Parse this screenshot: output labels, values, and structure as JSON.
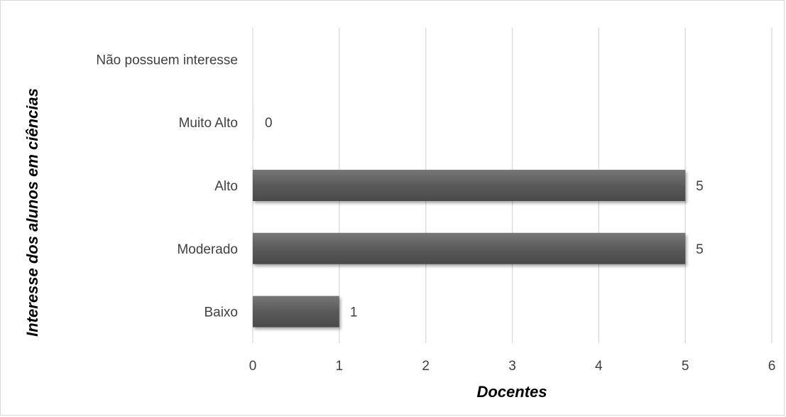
{
  "chart_data": {
    "type": "bar",
    "orientation": "horizontal",
    "categories": [
      "Baixo",
      "Moderado",
      "Alto",
      "Muito Alto",
      "Não possuem interesse"
    ],
    "values": [
      1,
      5,
      5,
      0,
      null
    ],
    "data_labels": [
      "1",
      "5",
      "5",
      "0",
      ""
    ],
    "xlabel": "Docentes",
    "ylabel": "Interesse dos alunos em ciências",
    "xlim": [
      0,
      6
    ],
    "xticks": [
      "0",
      "1",
      "2",
      "3",
      "4",
      "5",
      "6"
    ],
    "grid": "vertical",
    "bar_color": "#595959",
    "grid_color": "#d9d9d9"
  }
}
